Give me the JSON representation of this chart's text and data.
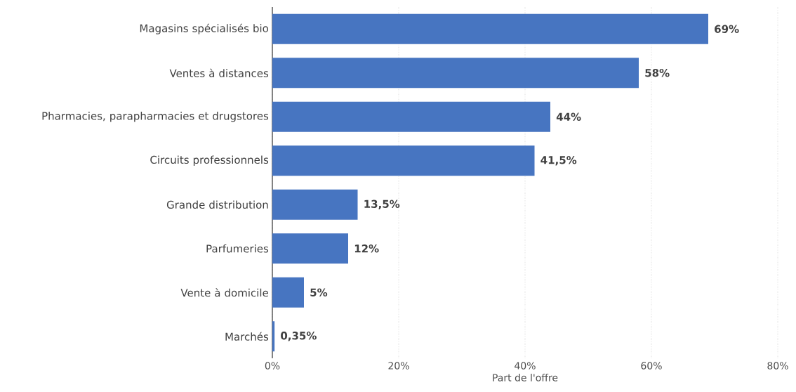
{
  "chart_data": {
    "type": "bar",
    "orientation": "horizontal",
    "xlabel": "Part de l'offre",
    "categories": [
      "Magasins spécialisés bio",
      "Ventes à distances",
      "Pharmacies, parapharmacies et drugstores",
      "Circuits professionnels",
      "Grande distribution",
      "Parfumeries",
      "Vente à domicile",
      "Marchés"
    ],
    "values": [
      69,
      58,
      44,
      41.5,
      13.5,
      12,
      5,
      0.35
    ],
    "value_labels": [
      "69%",
      "58%",
      "44%",
      "41,5%",
      "13,5%",
      "12%",
      "5%",
      "0,35%"
    ],
    "color": "#4775c1",
    "xlim": [
      0,
      80
    ],
    "xticks": [
      {
        "value": 0,
        "label": "0%"
      },
      {
        "value": 20,
        "label": "20%"
      },
      {
        "value": 40,
        "label": "40%"
      },
      {
        "value": 60,
        "label": "60%"
      },
      {
        "value": 80,
        "label": "80%"
      }
    ],
    "grid": "x"
  }
}
